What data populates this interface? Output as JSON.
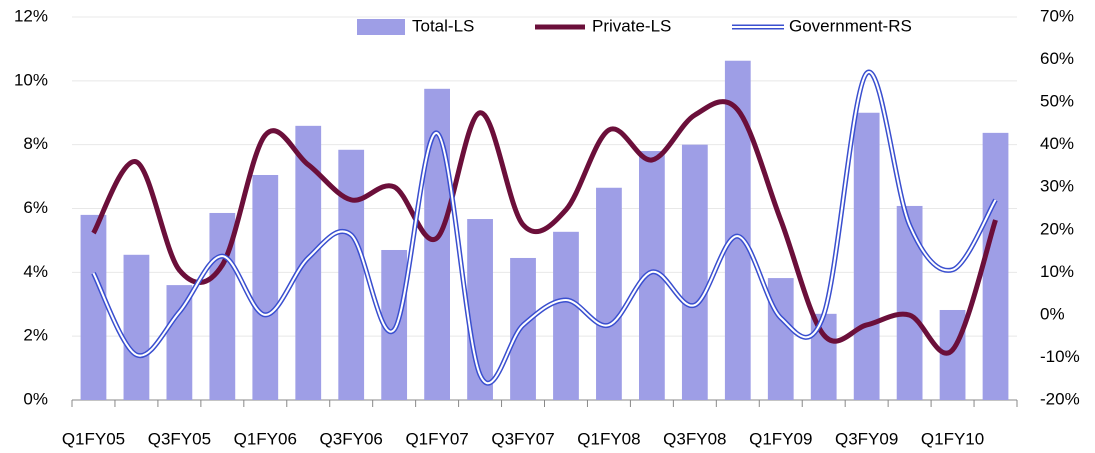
{
  "chart_data": {
    "type": "bar",
    "categories": [
      "Q1FY05",
      null,
      "Q3FY05",
      null,
      "Q1FY06",
      null,
      "Q3FY06",
      null,
      "Q1FY07",
      null,
      "Q3FY07",
      null,
      "Q1FY08",
      null,
      "Q3FY08",
      null,
      "Q1FY09",
      null,
      "Q3FY09",
      null,
      "Q1FY10",
      null
    ],
    "series": [
      {
        "name": "Total-LS",
        "type": "bar",
        "color": "#9e9ee6",
        "values": [
          5.8,
          4.55,
          3.6,
          5.86,
          7.05,
          8.59,
          7.84,
          4.7,
          9.75,
          5.67,
          4.45,
          5.27,
          6.65,
          7.8,
          8.0,
          10.63,
          3.82,
          2.7,
          9.0,
          6.08,
          2.82,
          8.37
        ]
      },
      {
        "name": "Private-LS",
        "type": "line",
        "color": "#6b0f3a",
        "values": [
          5.23,
          7.46,
          4.07,
          4.23,
          8.3,
          7.37,
          6.27,
          6.68,
          5.08,
          9.0,
          5.49,
          5.96,
          8.46,
          7.52,
          8.93,
          9.09,
          5.64,
          2.04,
          2.35,
          2.66,
          1.57,
          5.64
        ]
      },
      {
        "name": "Government-RS",
        "type": "double-line",
        "color": "#3a4fcf",
        "axis": "y2",
        "values": [
          9.8,
          -9.4,
          0.7,
          13.8,
          0.0,
          13.4,
          18.8,
          -3.5,
          42.7,
          -14.1,
          -2.4,
          3.5,
          -2.4,
          10.1,
          2.3,
          18.5,
          -0.7,
          0.0,
          56.8,
          21.1,
          10.6,
          27.0
        ]
      }
    ],
    "ylim": [
      0,
      12
    ],
    "yticks": [
      {
        "value": 0,
        "label": "0%"
      },
      {
        "value": 2,
        "label": "2%"
      },
      {
        "value": 4,
        "label": "4%"
      },
      {
        "value": 6,
        "label": "6%"
      },
      {
        "value": 8,
        "label": "8%"
      },
      {
        "value": 10,
        "label": "10%"
      },
      {
        "value": 12,
        "label": "12%"
      }
    ],
    "y2lim": [
      -20,
      70
    ],
    "y2ticks": [
      {
        "value": -20,
        "label": "-20%"
      },
      {
        "value": -10,
        "label": "-10%"
      },
      {
        "value": 0,
        "label": "0%"
      },
      {
        "value": 10,
        "label": "10%"
      },
      {
        "value": 20,
        "label": "20%"
      },
      {
        "value": 30,
        "label": "30%"
      },
      {
        "value": 40,
        "label": "40%"
      },
      {
        "value": 50,
        "label": "50%"
      },
      {
        "value": 60,
        "label": "60%"
      },
      {
        "value": 70,
        "label": "70%"
      }
    ],
    "grid": true,
    "legend": "top"
  }
}
